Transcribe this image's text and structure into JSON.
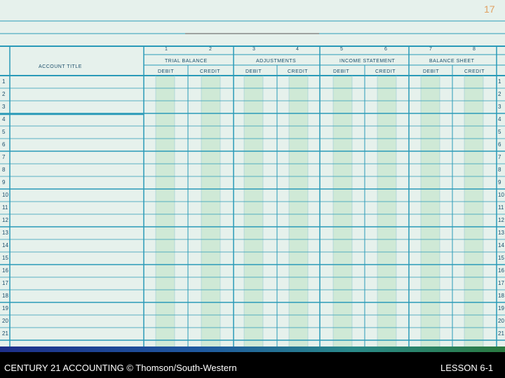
{
  "slide": {
    "number": "17"
  },
  "worksheet": {
    "account_title_label": "ACCOUNT TITLE",
    "column_numbers": [
      "1",
      "2",
      "3",
      "4",
      "5",
      "6",
      "7",
      "8"
    ],
    "groups": [
      {
        "title": "TRIAL BALANCE",
        "debit": "DEBIT",
        "credit": "CREDIT"
      },
      {
        "title": "ADJUSTMENTS",
        "debit": "DEBIT",
        "credit": "CREDIT"
      },
      {
        "title": "INCOME STATEMENT",
        "debit": "DEBIT",
        "credit": "CREDIT"
      },
      {
        "title": "BALANCE SHEET",
        "debit": "DEBIT",
        "credit": "CREDIT"
      }
    ],
    "row_numbers": [
      "1",
      "2",
      "3",
      "4",
      "5",
      "6",
      "7",
      "8",
      "9",
      "10",
      "11",
      "12",
      "13",
      "14",
      "15",
      "16",
      "17",
      "18",
      "19",
      "20",
      "21"
    ]
  },
  "footer": {
    "left": "CENTURY 21 ACCOUNTING © Thomson/South-Western",
    "right": "LESSON 6-1"
  },
  "colors": {
    "background": "#e6f1ec",
    "rule": "#2a9ab8",
    "money_column": "#cfe9d6",
    "footer": "#000000"
  }
}
